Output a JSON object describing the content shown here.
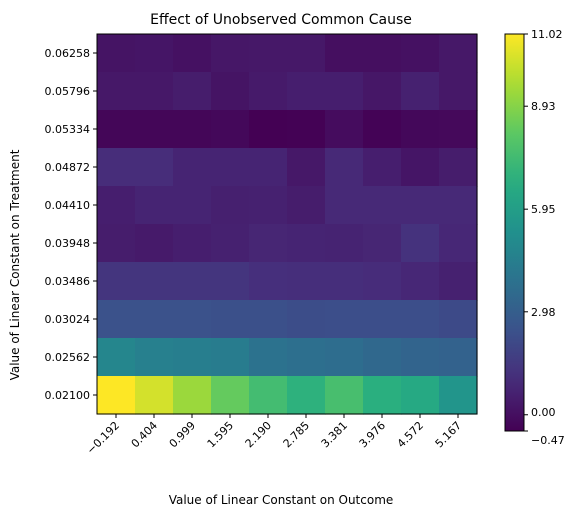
{
  "chart_data": {
    "type": "heatmap",
    "title": "Effect of Unobserved Common Cause",
    "xlabel": "Value of Linear Constant on Outcome",
    "ylabel": "Value of Linear Constant on Treatment",
    "x_ticks": [
      "−0.192",
      "0.404",
      "0.999",
      "1.595",
      "2.190",
      "2.785",
      "3.381",
      "3.976",
      "4.572",
      "5.167"
    ],
    "y_ticks": [
      "0.06258",
      "0.05796",
      "0.05334",
      "0.04872",
      "0.04410",
      "0.03948",
      "0.03486",
      "0.03024",
      "0.02562",
      "0.02100"
    ],
    "values": [
      [
        0.15,
        0.2,
        0.05,
        0.25,
        0.3,
        0.3,
        0.0,
        0.0,
        0.05,
        0.3
      ],
      [
        0.3,
        0.3,
        0.45,
        0.15,
        0.35,
        0.5,
        0.5,
        0.25,
        0.6,
        0.3
      ],
      [
        -0.3,
        -0.3,
        -0.3,
        -0.25,
        -0.47,
        -0.45,
        -0.1,
        -0.4,
        -0.25,
        -0.2
      ],
      [
        1.0,
        1.0,
        0.7,
        0.7,
        0.7,
        0.3,
        0.85,
        0.5,
        0.2,
        0.45
      ],
      [
        0.5,
        0.7,
        0.7,
        0.55,
        0.6,
        0.45,
        0.85,
        0.85,
        0.85,
        0.85
      ],
      [
        0.45,
        0.35,
        0.5,
        0.6,
        0.75,
        0.7,
        0.65,
        0.75,
        1.2,
        0.8
      ],
      [
        1.3,
        1.3,
        1.3,
        1.3,
        1.1,
        1.05,
        1.05,
        0.95,
        0.8,
        0.6
      ],
      [
        2.45,
        2.45,
        2.45,
        2.35,
        2.35,
        2.25,
        2.3,
        2.3,
        2.3,
        2.15
      ],
      [
        4.8,
        4.55,
        4.45,
        4.35,
        3.9,
        3.75,
        3.65,
        3.45,
        3.25,
        3.15
      ],
      [
        11.02,
        10.3,
        9.3,
        8.3,
        7.5,
        6.9,
        7.6,
        6.8,
        6.5,
        5.5
      ]
    ],
    "colorbar": {
      "min": -0.47,
      "max": 11.02,
      "ticks": [
        "−0.47",
        "0.00",
        "2.98",
        "5.95",
        "8.93",
        "11.02"
      ],
      "tick_values": [
        -0.47,
        0,
        2.98,
        5.95,
        8.93,
        11.02
      ]
    },
    "colormap": "viridis"
  }
}
